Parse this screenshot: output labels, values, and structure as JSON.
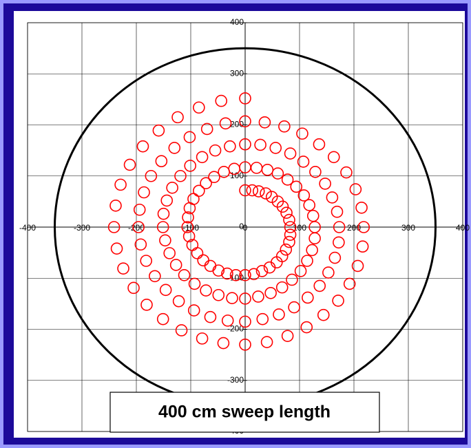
{
  "chart_data": {
    "type": "scatter",
    "annotation": "400 cm sweep length",
    "xlim": [
      -400,
      400
    ],
    "ylim": [
      -400,
      400
    ],
    "xticks": [
      -400,
      -300,
      -200,
      -100,
      0,
      100,
      200,
      300,
      400
    ],
    "yticks": [
      -400,
      -300,
      -200,
      -100,
      0,
      100,
      200,
      300,
      400
    ],
    "grid": true,
    "circle": {
      "radius": 350,
      "color": "#000000"
    },
    "series": [
      {
        "color": "#ff0000",
        "x": [
          0,
          13,
          25,
          38,
          49,
          60,
          69,
          76,
          81,
          83,
          83,
          81,
          75,
          68,
          58,
          45,
          31,
          16,
          0,
          -17,
          -33,
          -49,
          -64,
          -77,
          -88,
          -97,
          -103,
          -106,
          -105,
          -102,
          -95,
          -85,
          -72,
          -57,
          -39,
          -20,
          0,
          21,
          41,
          60,
          78,
          94,
          108,
          118,
          125,
          128,
          128,
          123,
          114,
          102,
          86,
          68,
          47,
          24,
          0,
          -24,
          -49,
          -72,
          -93,
          -112,
          -127,
          -139,
          -147,
          -151,
          -150,
          -144,
          -134,
          -119,
          -101,
          -79,
          -55,
          -28,
          0,
          28,
          56,
          83,
          107,
          129,
          147,
          160,
          169,
          173,
          172,
          165,
          153,
          137,
          115,
          90,
          62,
          32,
          0,
          -32,
          -64,
          -94,
          -122,
          -146,
          -166,
          -182,
          -192,
          -196,
          -194,
          -186,
          -173,
          -154,
          -130,
          -102,
          -70,
          -36,
          0,
          36,
          72,
          105,
          136,
          163,
          186,
          203,
          214,
          218,
          216,
          207,
          192,
          171,
          144,
          113,
          78,
          40,
          0,
          -40,
          -79,
          -117,
          -151,
          -181,
          -205,
          -224,
          -236,
          -241,
          -238,
          -229,
          -212,
          -188,
          -159,
          -124,
          -85,
          -44,
          0
        ],
        "values": [
          72,
          72,
          70,
          66,
          59,
          50,
          40,
          28,
          14,
          0,
          -15,
          -29,
          -44,
          -57,
          -69,
          -79,
          -86,
          -92,
          -94,
          -94,
          -91,
          -85,
          -76,
          -65,
          -51,
          -35,
          -18,
          0,
          19,
          37,
          55,
          71,
          86,
          98,
          108,
          114,
          117,
          116,
          112,
          105,
          93,
          79,
          62,
          43,
          22,
          0,
          -22,
          -45,
          -66,
          -86,
          -103,
          -118,
          -129,
          -136,
          -140,
          -139,
          -133,
          -124,
          -111,
          -94,
          -74,
          -51,
          -26,
          0,
          26,
          52,
          77,
          100,
          120,
          137,
          150,
          158,
          162,
          161,
          155,
          144,
          128,
          108,
          85,
          58,
          30,
          0,
          -30,
          -60,
          -89,
          -115,
          -138,
          -157,
          -171,
          -180,
          -185,
          -183,
          -176,
          -163,
          -145,
          -123,
          -96,
          -66,
          -34,
          0,
          34,
          68,
          100,
          129,
          155,
          176,
          192,
          203,
          207,
          205,
          197,
          183,
          162,
          137,
          107,
          74,
          38,
          0,
          -38,
          -76,
          -111,
          -144,
          -172,
          -196,
          -213,
          -225,
          -230,
          -227,
          -218,
          -202,
          -180,
          -152,
          -119,
          -81,
          -42,
          0,
          42,
          83,
          122,
          158,
          189,
          215,
          234,
          247,
          252
        ]
      }
    ]
  }
}
